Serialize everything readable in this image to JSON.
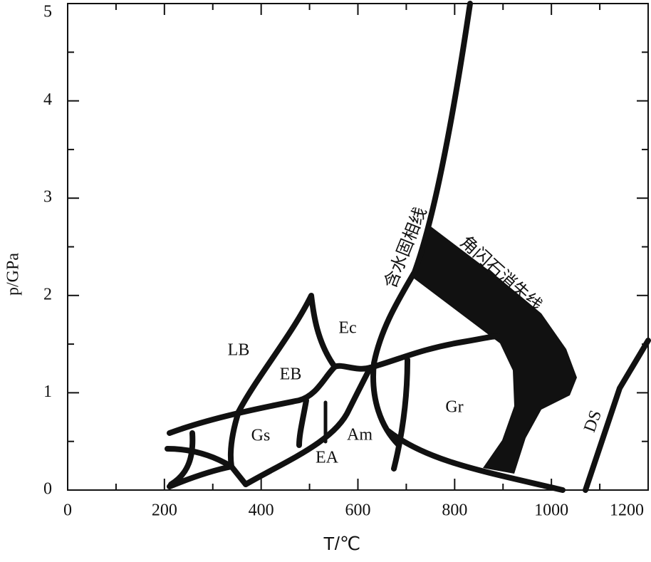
{
  "chart_data": {
    "type": "phase-diagram",
    "x_label": "T/℃",
    "y_label": "p/GPa",
    "xlim": [
      0,
      1200
    ],
    "xticks": [
      0,
      200,
      400,
      600,
      800,
      1000,
      1200
    ],
    "ylim": [
      0,
      5
    ],
    "yticks": [
      0,
      1,
      2,
      3,
      4,
      5
    ],
    "regions": [
      "LB",
      "EB",
      "Ec",
      "Gs",
      "EA",
      "Am",
      "Gr",
      "DS"
    ],
    "curve_labels": [
      "含水固相线",
      "角闪石消失线"
    ]
  }
}
